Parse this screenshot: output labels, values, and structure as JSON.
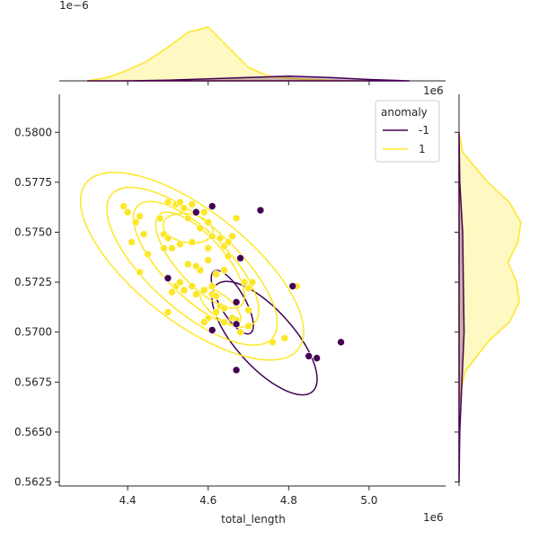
{
  "chart_data": {
    "type": "scatter",
    "subtype": "jointplot-kde",
    "xlabel": "total_length",
    "ylabel": "",
    "x_offset_text": "1e6",
    "y_offset_text": "1e6",
    "top_marginal_offset_text": "1e−6",
    "xlim": [
      4.23,
      5.19
    ],
    "ylim": [
      0.5623,
      0.5819
    ],
    "x_ticks": [
      4.4,
      4.6,
      4.8,
      5.0
    ],
    "x_tick_labels": [
      "4.4",
      "4.6",
      "4.8",
      "5.0"
    ],
    "y_ticks": [
      0.5625,
      0.565,
      0.5675,
      0.57,
      0.5725,
      0.575,
      0.5775,
      0.58
    ],
    "y_tick_labels": [
      "0.5625",
      "0.5650",
      "0.5675",
      "0.5700",
      "0.5725",
      "0.5750",
      "0.5775",
      "0.5800"
    ],
    "legend": {
      "title": "anomaly",
      "placement": "top-right",
      "entries": [
        {
          "label": "-1",
          "color": "#440154"
        },
        {
          "label": "1",
          "color": "#fde725"
        }
      ]
    },
    "series": [
      {
        "name": "-1",
        "color": "#440154",
        "points": [
          [
            4.57,
            0.576
          ],
          [
            4.73,
            0.5761
          ],
          [
            4.61,
            0.5763
          ],
          [
            4.5,
            0.5727
          ],
          [
            4.67,
            0.5715
          ],
          [
            4.67,
            0.5704
          ],
          [
            4.61,
            0.5701
          ],
          [
            4.68,
            0.5737
          ],
          [
            4.67,
            0.5681
          ],
          [
            4.81,
            0.5723
          ],
          [
            4.85,
            0.5688
          ],
          [
            4.87,
            0.5687
          ],
          [
            4.93,
            0.5695
          ]
        ]
      },
      {
        "name": "1",
        "color": "#fde725",
        "points": [
          [
            4.39,
            0.5763
          ],
          [
            4.4,
            0.576
          ],
          [
            4.42,
            0.5755
          ],
          [
            4.44,
            0.5749
          ],
          [
            4.41,
            0.5745
          ],
          [
            4.45,
            0.5739
          ],
          [
            4.43,
            0.573
          ],
          [
            4.49,
            0.5749
          ],
          [
            4.5,
            0.5747
          ],
          [
            4.49,
            0.5742
          ],
          [
            4.51,
            0.5742
          ],
          [
            4.5,
            0.5765
          ],
          [
            4.52,
            0.5764
          ],
          [
            4.53,
            0.5765
          ],
          [
            4.54,
            0.5762
          ],
          [
            4.55,
            0.5757
          ],
          [
            4.56,
            0.5764
          ],
          [
            4.58,
            0.5752
          ],
          [
            4.59,
            0.576
          ],
          [
            4.6,
            0.5755
          ],
          [
            4.61,
            0.5748
          ],
          [
            4.63,
            0.5747
          ],
          [
            4.64,
            0.5743
          ],
          [
            4.66,
            0.5748
          ],
          [
            4.65,
            0.5738
          ],
          [
            4.64,
            0.5731
          ],
          [
            4.62,
            0.5729
          ],
          [
            4.6,
            0.5736
          ],
          [
            4.58,
            0.5731
          ],
          [
            4.55,
            0.5734
          ],
          [
            4.57,
            0.5733
          ],
          [
            4.52,
            0.5723
          ],
          [
            4.53,
            0.5725
          ],
          [
            4.51,
            0.572
          ],
          [
            4.54,
            0.5721
          ],
          [
            4.56,
            0.5723
          ],
          [
            4.57,
            0.5719
          ],
          [
            4.59,
            0.5721
          ],
          [
            4.61,
            0.5719
          ],
          [
            4.61,
            0.5723
          ],
          [
            4.62,
            0.5718
          ],
          [
            4.63,
            0.5713
          ],
          [
            4.62,
            0.571
          ],
          [
            4.64,
            0.5705
          ],
          [
            4.66,
            0.5707
          ],
          [
            4.67,
            0.5706
          ],
          [
            4.68,
            0.57
          ],
          [
            4.7,
            0.5703
          ],
          [
            4.7,
            0.5722
          ],
          [
            4.69,
            0.5725
          ],
          [
            4.71,
            0.5725
          ],
          [
            4.7,
            0.5711
          ],
          [
            4.6,
            0.5707
          ],
          [
            4.59,
            0.5705
          ],
          [
            4.64,
            0.5712
          ],
          [
            4.61,
            0.5701
          ],
          [
            4.65,
            0.5745
          ],
          [
            4.67,
            0.5757
          ],
          [
            4.5,
            0.571
          ],
          [
            4.43,
            0.5758
          ],
          [
            4.48,
            0.5757
          ],
          [
            4.53,
            0.5744
          ],
          [
            4.6,
            0.5742
          ],
          [
            4.56,
            0.5745
          ],
          [
            4.79,
            0.5697
          ],
          [
            4.76,
            0.5695
          ],
          [
            4.82,
            0.5723
          ]
        ]
      }
    ],
    "marginal_top": {
      "ylim_scaled": [
        0,
        1
      ],
      "series": [
        {
          "name": "1",
          "color": "#fde725",
          "x": [
            4.3,
            4.35,
            4.4,
            4.45,
            4.5,
            4.55,
            4.6,
            4.65,
            4.7,
            4.75,
            4.8,
            4.85,
            4.9,
            4.95,
            5.0
          ],
          "density": [
            0.0,
            0.05,
            0.16,
            0.3,
            0.5,
            0.72,
            0.8,
            0.5,
            0.2,
            0.07,
            0.04,
            0.02,
            0.01,
            0.0,
            0.0
          ]
        },
        {
          "name": "-1",
          "color": "#440154",
          "x": [
            4.3,
            4.4,
            4.5,
            4.6,
            4.7,
            4.8,
            4.9,
            5.0,
            5.1
          ],
          "density": [
            0.0,
            0.0,
            0.01,
            0.03,
            0.05,
            0.07,
            0.05,
            0.02,
            0.0
          ]
        }
      ]
    },
    "marginal_right": {
      "series": [
        {
          "name": "1",
          "color": "#fde725",
          "y": [
            0.5665,
            0.568,
            0.5695,
            0.5705,
            0.5715,
            0.5725,
            0.5735,
            0.5745,
            0.5755,
            0.5765,
            0.5775,
            0.579,
            0.58
          ],
          "density": [
            0.0,
            0.08,
            0.4,
            0.7,
            0.84,
            0.8,
            0.68,
            0.82,
            0.86,
            0.7,
            0.4,
            0.05,
            0.0
          ]
        },
        {
          "name": "-1",
          "color": "#440154",
          "y": [
            0.5625,
            0.565,
            0.5675,
            0.57,
            0.5725,
            0.575,
            0.5775,
            0.58
          ],
          "density": [
            0.0,
            0.01,
            0.04,
            0.07,
            0.06,
            0.05,
            0.01,
            0.0
          ]
        }
      ]
    }
  }
}
